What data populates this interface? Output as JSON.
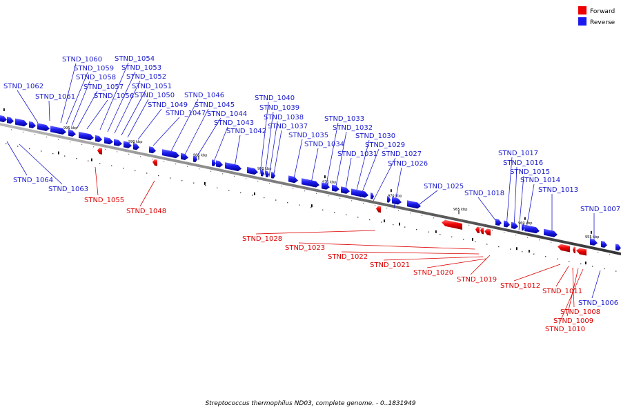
{
  "legend": {
    "forward": {
      "label": "Forward",
      "color": "#ee0000"
    },
    "reverse": {
      "label": "Reverse",
      "color": "#1a1aee"
    }
  },
  "caption": "Streptococcus thermophilus ND03, complete genome. - 0..1831949",
  "ticks": [
    {
      "label": "995 kbp"
    },
    {
      "label": "990 kbp"
    },
    {
      "label": "985 kbp"
    },
    {
      "label": "980 kbp"
    },
    {
      "label": "975 kbp"
    },
    {
      "label": "970 kbp"
    },
    {
      "label": "965 kbp"
    },
    {
      "label": "960 kbp"
    },
    {
      "label": "955 kbp"
    }
  ],
  "genes": [
    {
      "name": "STND_1062",
      "strand": "reverse"
    },
    {
      "name": "STND_1061",
      "strand": "reverse"
    },
    {
      "name": "STND_1060",
      "strand": "reverse"
    },
    {
      "name": "STND_1059",
      "strand": "reverse"
    },
    {
      "name": "STND_1058",
      "strand": "reverse"
    },
    {
      "name": "STND_1057",
      "strand": "reverse"
    },
    {
      "name": "STND_1056",
      "strand": "reverse"
    },
    {
      "name": "STND_1054",
      "strand": "reverse"
    },
    {
      "name": "STND_1053",
      "strand": "reverse"
    },
    {
      "name": "STND_1052",
      "strand": "reverse"
    },
    {
      "name": "STND_1051",
      "strand": "reverse"
    },
    {
      "name": "STND_1050",
      "strand": "reverse"
    },
    {
      "name": "STND_1049",
      "strand": "reverse"
    },
    {
      "name": "STND_1047",
      "strand": "reverse"
    },
    {
      "name": "STND_1046",
      "strand": "reverse"
    },
    {
      "name": "STND_1045",
      "strand": "reverse"
    },
    {
      "name": "STND_1044",
      "strand": "reverse"
    },
    {
      "name": "STND_1043",
      "strand": "reverse"
    },
    {
      "name": "STND_1042",
      "strand": "reverse"
    },
    {
      "name": "STND_1040",
      "strand": "reverse"
    },
    {
      "name": "STND_1039",
      "strand": "reverse"
    },
    {
      "name": "STND_1038",
      "strand": "reverse"
    },
    {
      "name": "STND_1037",
      "strand": "reverse"
    },
    {
      "name": "STND_1035",
      "strand": "reverse"
    },
    {
      "name": "STND_1034",
      "strand": "reverse"
    },
    {
      "name": "STND_1033",
      "strand": "reverse"
    },
    {
      "name": "STND_1032",
      "strand": "reverse"
    },
    {
      "name": "STND_1031",
      "strand": "reverse"
    },
    {
      "name": "STND_1030",
      "strand": "reverse"
    },
    {
      "name": "STND_1029",
      "strand": "reverse"
    },
    {
      "name": "STND_1027",
      "strand": "reverse"
    },
    {
      "name": "STND_1026",
      "strand": "reverse"
    },
    {
      "name": "STND_1025",
      "strand": "reverse"
    },
    {
      "name": "STND_1018",
      "strand": "reverse"
    },
    {
      "name": "STND_1017",
      "strand": "reverse"
    },
    {
      "name": "STND_1016",
      "strand": "reverse"
    },
    {
      "name": "STND_1015",
      "strand": "reverse"
    },
    {
      "name": "STND_1014",
      "strand": "reverse"
    },
    {
      "name": "STND_1013",
      "strand": "reverse"
    },
    {
      "name": "STND_1007",
      "strand": "reverse"
    },
    {
      "name": "STND_1064",
      "strand": "reverse"
    },
    {
      "name": "STND_1063",
      "strand": "reverse"
    },
    {
      "name": "STND_1006",
      "strand": "reverse"
    },
    {
      "name": "STND_1055",
      "strand": "forward"
    },
    {
      "name": "STND_1048",
      "strand": "forward"
    },
    {
      "name": "STND_1028",
      "strand": "forward"
    },
    {
      "name": "STND_1023",
      "strand": "forward"
    },
    {
      "name": "STND_1022",
      "strand": "forward"
    },
    {
      "name": "STND_1021",
      "strand": "forward"
    },
    {
      "name": "STND_1020",
      "strand": "forward"
    },
    {
      "name": "STND_1019",
      "strand": "forward"
    },
    {
      "name": "STND_1012",
      "strand": "forward"
    },
    {
      "name": "STND_1011",
      "strand": "forward"
    },
    {
      "name": "STND_1008",
      "strand": "forward"
    },
    {
      "name": "STND_1009",
      "strand": "forward"
    },
    {
      "name": "STND_1010",
      "strand": "forward"
    }
  ]
}
